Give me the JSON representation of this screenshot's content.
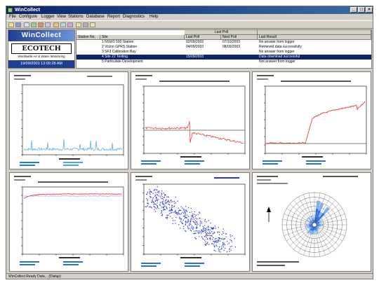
{
  "window": {
    "title": "WinCollect"
  },
  "menu": [
    "File",
    "Configure",
    "Logger",
    "View",
    "Stations",
    "Database",
    "Report",
    "Diagnostics",
    "Help"
  ],
  "logo": {
    "wincollect": "WinCollect",
    "ecotech": "ECOTECH",
    "tagline": "Worldwide Air & Water Monitoring",
    "datetime": "19/09/2003 13:09:28 AM"
  },
  "table": {
    "group_header": "Last Poll",
    "columns": [
      "Station No.",
      "Site",
      "Last Poll",
      "Next Poll",
      "Last Result"
    ],
    "rows": [
      [
        "",
        "1 NSW1 500 Station",
        "02/09/2003",
        "07/10/2003",
        "No answer from logger"
      ],
      [
        "",
        "2 Vicino GPRS Station",
        "04/09/2003",
        "08/09/2003",
        "Retrieved data successfully"
      ],
      [
        "",
        "3 SF3 Calibration Bay",
        "",
        "",
        "No answer from logger"
      ],
      [
        "",
        "4 Site 22 Testing",
        "15/09/2003",
        "",
        "Data download successful"
      ],
      [
        "",
        "5 Particulate Development",
        "",
        "",
        "Not answer from logger"
      ]
    ],
    "selected_row": 3
  },
  "status": {
    "text": "WinCollect Ready Data... (Dialup)"
  },
  "colors": {
    "selection": "#0a246a",
    "panel1_series": "#49a6e8",
    "panel1_series2": "#1e7fd0",
    "panel2_series": "#e8262a",
    "panel3_series": "#e8262a",
    "panel4_series": "#e8262a",
    "panel4_series2": "#8a9bd6",
    "panel5_points": "#2a35e0",
    "panel6_rose": "#2a6fd6"
  }
}
